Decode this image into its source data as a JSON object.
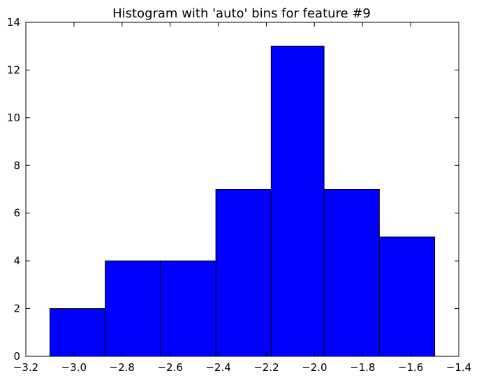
{
  "chart_data": {
    "type": "bar",
    "title": "Histogram with 'auto' bins for feature #9",
    "xlabel": "",
    "ylabel": "",
    "xlim": [
      -3.2,
      -1.4
    ],
    "ylim": [
      0,
      14
    ],
    "bin_edges": [
      -3.1,
      -2.87,
      -2.64,
      -2.41,
      -2.18,
      -1.96,
      -1.73,
      -1.5
    ],
    "values": [
      2,
      4,
      4,
      7,
      13,
      7,
      5
    ],
    "xticks": [
      -3.2,
      -3.0,
      -2.8,
      -2.6,
      -2.4,
      -2.2,
      -2.0,
      -1.8,
      -1.6,
      -1.4
    ],
    "xtick_labels": [
      "−3.2",
      "−3.0",
      "−2.8",
      "−2.6",
      "−2.4",
      "−2.2",
      "−2.0",
      "−1.8",
      "−1.6",
      "−1.4"
    ],
    "yticks": [
      0,
      2,
      4,
      6,
      8,
      10,
      12,
      14
    ],
    "ytick_labels": [
      "0",
      "2",
      "4",
      "6",
      "8",
      "10",
      "12",
      "14"
    ],
    "bar_color": "#0000ff",
    "edge_color": "#000000",
    "grid": false,
    "legend": "none"
  }
}
